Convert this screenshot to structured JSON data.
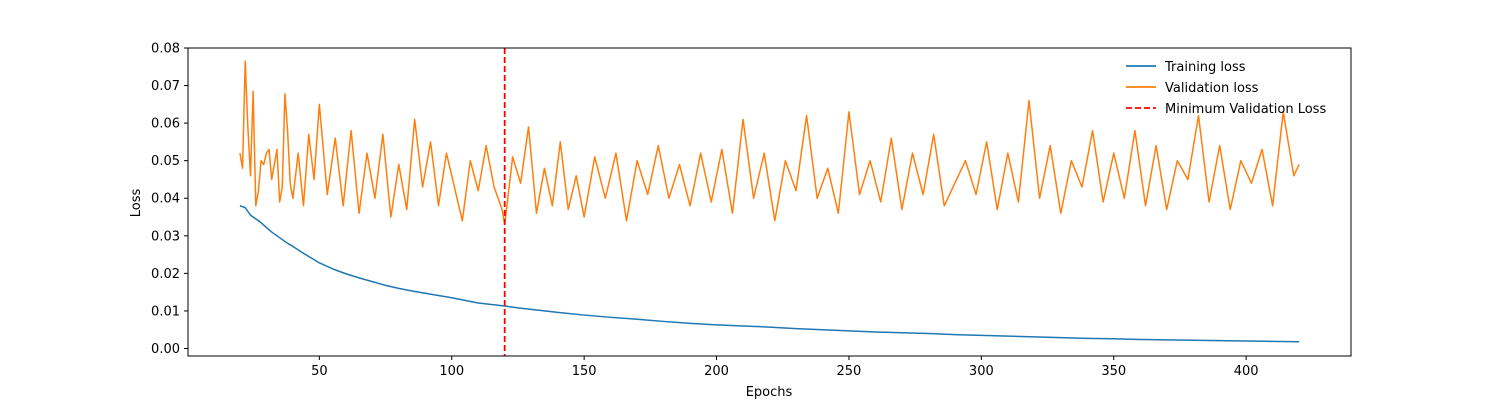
{
  "chart_data": {
    "type": "line",
    "title": "",
    "xlabel": "Epochs",
    "ylabel": "Loss",
    "xlim": [
      0.4,
      439.6
    ],
    "ylim": [
      -0.002,
      0.08
    ],
    "xticks": [
      50,
      100,
      150,
      200,
      250,
      300,
      350,
      400
    ],
    "yticks": [
      0.0,
      0.01,
      0.02,
      0.03,
      0.04,
      0.05,
      0.06,
      0.07,
      0.08
    ],
    "ytick_labels": [
      "0.00",
      "0.01",
      "0.02",
      "0.03",
      "0.04",
      "0.05",
      "0.06",
      "0.07",
      "0.08"
    ],
    "grid": false,
    "legend": {
      "position": "top-right",
      "entries": [
        {
          "label": "Training loss",
          "color": "#1f77b4",
          "style": "solid"
        },
        {
          "label": "Validation loss",
          "color": "#ff7f0e",
          "style": "solid"
        },
        {
          "label": "Minimum Validation Loss",
          "color": "#ff0000",
          "style": "dashed"
        }
      ]
    },
    "vline": {
      "name": "Minimum Validation Loss",
      "x": 120,
      "color": "#ff0000"
    },
    "series": [
      {
        "name": "Training loss",
        "color": "#1f77b4",
        "x": [
          20,
          22,
          24,
          26,
          28,
          30,
          32,
          35,
          38,
          40,
          43,
          46,
          50,
          55,
          60,
          65,
          70,
          75,
          80,
          85,
          90,
          95,
          100,
          105,
          110,
          115,
          120,
          125,
          130,
          140,
          150,
          160,
          170,
          180,
          190,
          200,
          210,
          220,
          230,
          240,
          250,
          260,
          270,
          280,
          290,
          300,
          310,
          320,
          330,
          340,
          350,
          360,
          370,
          380,
          390,
          400,
          410,
          420
        ],
        "y": [
          0.038,
          0.0375,
          0.0355,
          0.0345,
          0.0335,
          0.0322,
          0.031,
          0.0295,
          0.028,
          0.0272,
          0.0258,
          0.0245,
          0.0228,
          0.0212,
          0.0199,
          0.0188,
          0.0178,
          0.0168,
          0.016,
          0.0153,
          0.0147,
          0.0141,
          0.0135,
          0.0128,
          0.0121,
          0.0117,
          0.0113,
          0.0108,
          0.0104,
          0.0096,
          0.0089,
          0.0083,
          0.0078,
          0.0072,
          0.0067,
          0.0063,
          0.006,
          0.0057,
          0.0053,
          0.005,
          0.0047,
          0.0044,
          0.0042,
          0.004,
          0.0037,
          0.0035,
          0.0033,
          0.0031,
          0.0029,
          0.0027,
          0.0026,
          0.0024,
          0.0023,
          0.0022,
          0.0021,
          0.002,
          0.0019,
          0.0018
        ]
      },
      {
        "name": "Validation loss",
        "color": "#ff7f0e",
        "x": [
          20,
          21,
          22,
          23,
          24,
          25,
          26,
          27,
          28,
          29,
          30,
          31,
          32,
          33,
          34,
          35,
          36,
          37,
          38,
          39,
          40,
          42,
          44,
          46,
          48,
          50,
          53,
          56,
          59,
          62,
          65,
          68,
          71,
          74,
          77,
          80,
          83,
          86,
          89,
          92,
          95,
          98,
          101,
          104,
          107,
          110,
          113,
          116,
          119,
          120,
          123,
          126,
          129,
          132,
          135,
          138,
          141,
          144,
          147,
          150,
          154,
          158,
          162,
          166,
          170,
          174,
          178,
          182,
          186,
          190,
          194,
          198,
          202,
          206,
          210,
          214,
          218,
          222,
          226,
          230,
          234,
          238,
          242,
          246,
          250,
          254,
          258,
          262,
          266,
          270,
          274,
          278,
          282,
          286,
          290,
          294,
          298,
          302,
          306,
          310,
          314,
          318,
          322,
          326,
          330,
          334,
          338,
          342,
          346,
          350,
          354,
          358,
          362,
          366,
          370,
          374,
          378,
          382,
          386,
          390,
          394,
          398,
          402,
          406,
          410,
          414,
          418,
          420
        ],
        "y": [
          0.052,
          0.048,
          0.0765,
          0.059,
          0.046,
          0.0685,
          0.038,
          0.042,
          0.05,
          0.049,
          0.052,
          0.053,
          0.045,
          0.049,
          0.053,
          0.039,
          0.043,
          0.0678,
          0.058,
          0.044,
          0.04,
          0.052,
          0.038,
          0.057,
          0.045,
          0.065,
          0.041,
          0.056,
          0.038,
          0.058,
          0.036,
          0.052,
          0.04,
          0.057,
          0.035,
          0.049,
          0.037,
          0.061,
          0.043,
          0.055,
          0.038,
          0.052,
          0.043,
          0.034,
          0.05,
          0.042,
          0.054,
          0.043,
          0.037,
          0.033,
          0.051,
          0.044,
          0.059,
          0.036,
          0.048,
          0.038,
          0.055,
          0.037,
          0.046,
          0.035,
          0.051,
          0.04,
          0.052,
          0.034,
          0.05,
          0.041,
          0.054,
          0.04,
          0.049,
          0.038,
          0.052,
          0.039,
          0.053,
          0.036,
          0.061,
          0.04,
          0.052,
          0.034,
          0.05,
          0.042,
          0.062,
          0.04,
          0.048,
          0.036,
          0.063,
          0.041,
          0.05,
          0.039,
          0.056,
          0.037,
          0.052,
          0.041,
          0.057,
          0.038,
          0.044,
          0.05,
          0.041,
          0.055,
          0.037,
          0.052,
          0.039,
          0.066,
          0.04,
          0.054,
          0.036,
          0.05,
          0.043,
          0.058,
          0.039,
          0.052,
          0.04,
          0.058,
          0.038,
          0.054,
          0.037,
          0.05,
          0.045,
          0.062,
          0.039,
          0.054,
          0.037,
          0.05,
          0.044,
          0.053,
          0.038,
          0.063,
          0.046,
          0.049
        ]
      }
    ]
  }
}
